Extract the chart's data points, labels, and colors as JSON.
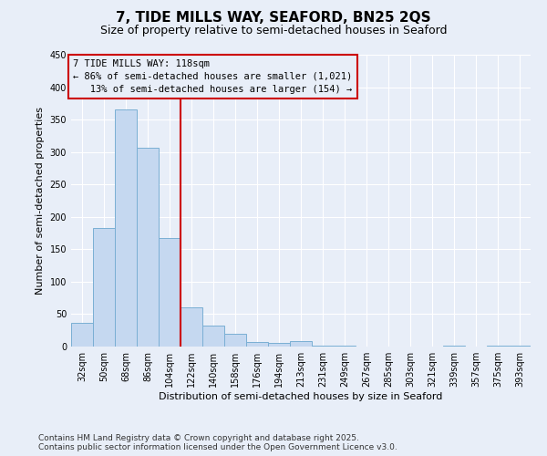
{
  "title": "7, TIDE MILLS WAY, SEAFORD, BN25 2QS",
  "subtitle": "Size of property relative to semi-detached houses in Seaford",
  "xlabel": "Distribution of semi-detached houses by size in Seaford",
  "ylabel": "Number of semi-detached properties",
  "categories": [
    "32sqm",
    "50sqm",
    "68sqm",
    "86sqm",
    "104sqm",
    "122sqm",
    "140sqm",
    "158sqm",
    "176sqm",
    "194sqm",
    "213sqm",
    "231sqm",
    "249sqm",
    "267sqm",
    "285sqm",
    "303sqm",
    "321sqm",
    "339sqm",
    "357sqm",
    "375sqm",
    "393sqm"
  ],
  "values": [
    37,
    183,
    365,
    307,
    168,
    61,
    33,
    19,
    7,
    6,
    8,
    2,
    1,
    0,
    0,
    0,
    0,
    2,
    0,
    1,
    2
  ],
  "bar_color": "#c5d8f0",
  "bar_edge_color": "#7aafd4",
  "vline_color": "#cc0000",
  "vline_x": 5,
  "annotation_line1": "7 TIDE MILLS WAY: 118sqm",
  "annotation_line2": "← 86% of semi-detached houses are smaller (1,021)",
  "annotation_line3": "   13% of semi-detached houses are larger (154) →",
  "annotation_box_edgecolor": "#cc0000",
  "ylim": [
    0,
    450
  ],
  "yticks": [
    0,
    50,
    100,
    150,
    200,
    250,
    300,
    350,
    400,
    450
  ],
  "background_color": "#e8eef8",
  "grid_color": "#ffffff",
  "footer_line1": "Contains HM Land Registry data © Crown copyright and database right 2025.",
  "footer_line2": "Contains public sector information licensed under the Open Government Licence v3.0.",
  "title_fontsize": 11,
  "subtitle_fontsize": 9,
  "axis_label_fontsize": 8,
  "tick_fontsize": 7,
  "annotation_fontsize": 7.5,
  "footer_fontsize": 6.5
}
